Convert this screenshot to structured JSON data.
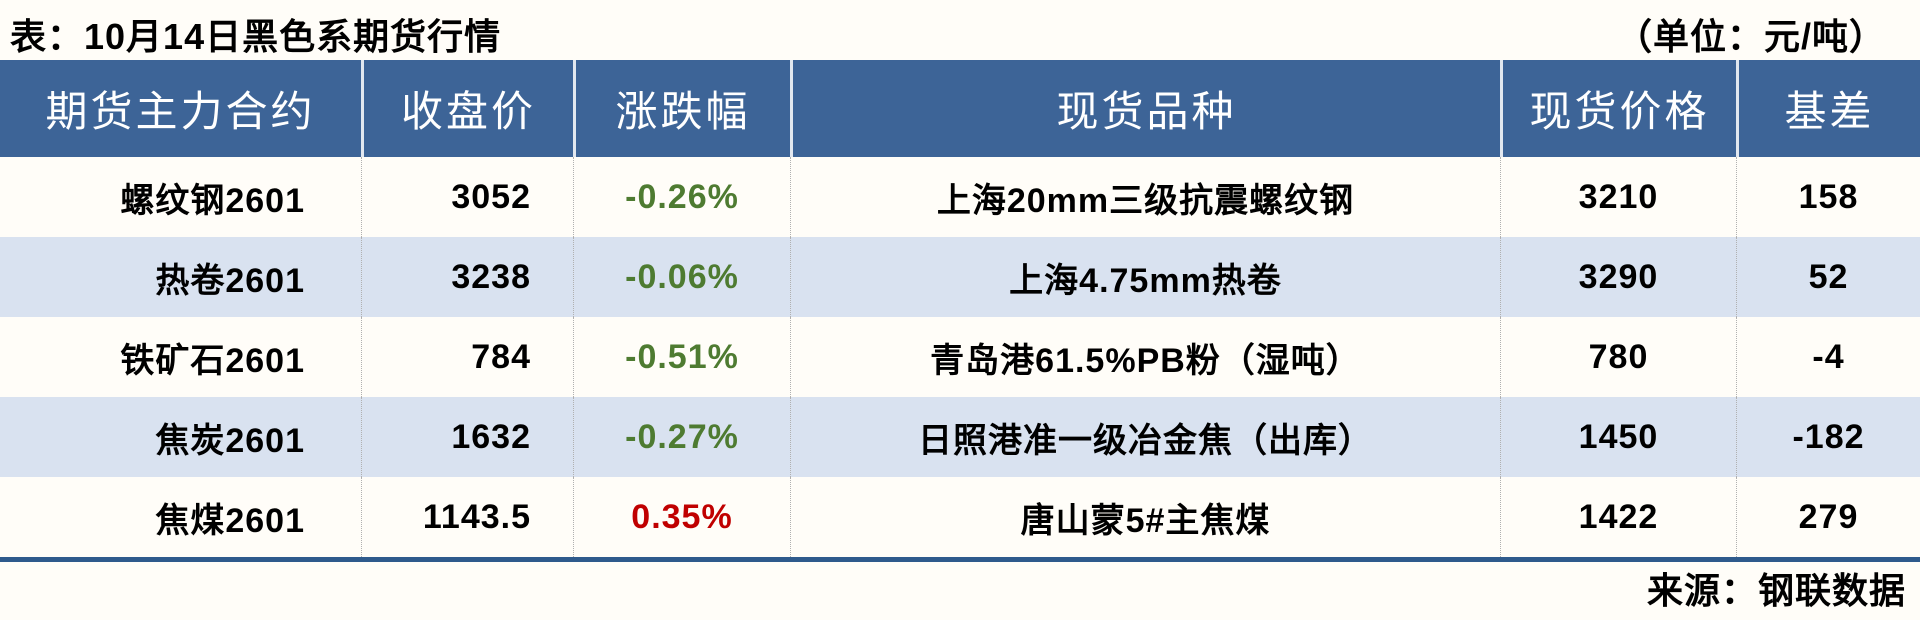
{
  "chart_data": {
    "type": "table",
    "title": "表：10月14日黑色系期货行情",
    "unit": "（单位：元/吨）",
    "source": "来源：钢联数据",
    "columns": [
      "期货主力合约",
      "收盘价",
      "涨跌幅",
      "现货品种",
      "现货价格",
      "基差"
    ],
    "rows": [
      [
        "螺纹钢2601",
        "3052",
        "-0.26%",
        "上海20mm三级抗震螺纹钢",
        "3210",
        "158"
      ],
      [
        "热卷2601",
        "3238",
        "-0.06%",
        "上海4.75mm热卷",
        "3290",
        "52"
      ],
      [
        "铁矿石2601",
        "784",
        "-0.51%",
        "青岛港61.5%PB粉（湿吨）",
        "780",
        "-4"
      ],
      [
        "焦炭2601",
        "1632",
        "-0.27%",
        "日照港准一级冶金焦（出库）",
        "1450",
        "-182"
      ],
      [
        "焦煤2601",
        "1143.5",
        "0.35%",
        "唐山蒙5#主焦煤",
        "1422",
        "279"
      ]
    ],
    "change_direction": [
      "down",
      "down",
      "down",
      "down",
      "up"
    ]
  },
  "colors": {
    "header_bg": "#3d6497",
    "row_bg": "#fffdf8",
    "row_alt_bg": "#d9e2f0",
    "down_green": "#4e7b31",
    "up_red": "#c00000",
    "bottom_rule": "#2e5a8c"
  }
}
